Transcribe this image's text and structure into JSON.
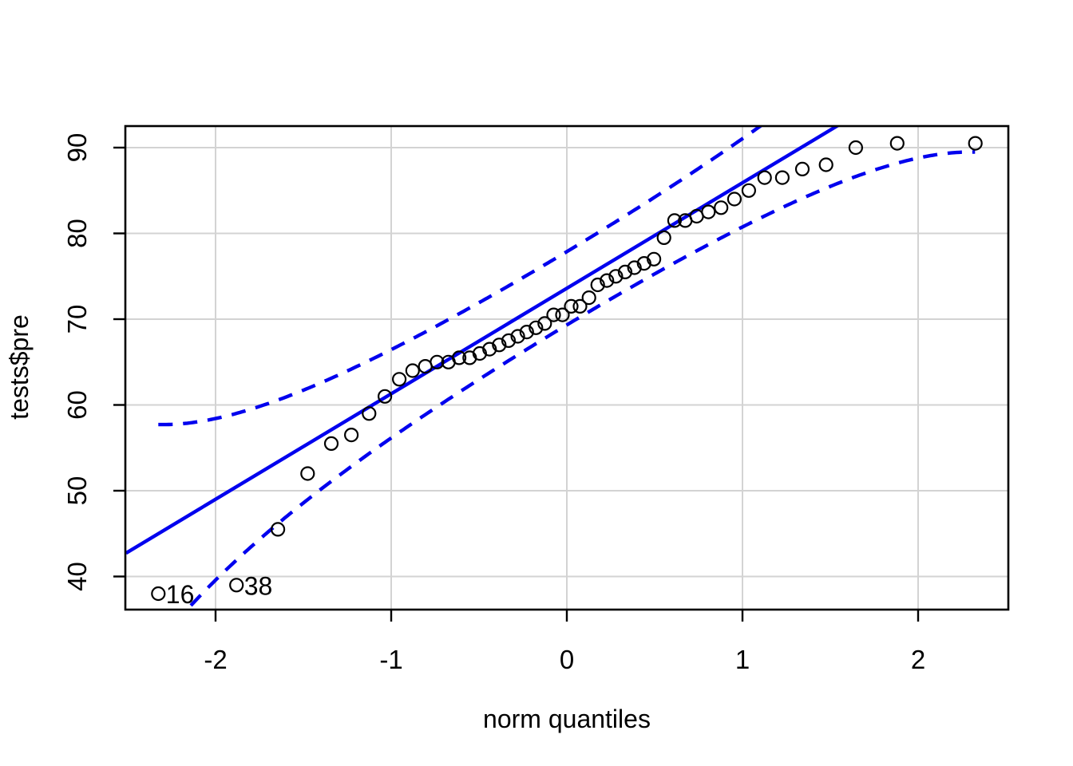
{
  "figure": {
    "background": "#ffffff"
  },
  "chart_data": {
    "type": "scatter",
    "variant": "qq-plot-with-confidence-envelope",
    "title": "",
    "xlabel": "norm quantiles",
    "ylabel": "tests$pre",
    "x_ticks": [
      -2,
      -1,
      0,
      1,
      2
    ],
    "y_ticks": [
      40,
      50,
      60,
      70,
      80,
      90
    ],
    "xlim": [
      -2.51,
      2.51
    ],
    "ylim": [
      36.1,
      92.5
    ],
    "grid": true,
    "legend": false,
    "points": [
      {
        "x": -2.326,
        "y": 38,
        "label": "16"
      },
      {
        "x": -1.881,
        "y": 39,
        "label": "38"
      },
      {
        "x": -1.645,
        "y": 45.5
      },
      {
        "x": -1.476,
        "y": 52
      },
      {
        "x": -1.341,
        "y": 55.5
      },
      {
        "x": -1.227,
        "y": 56.5
      },
      {
        "x": -1.126,
        "y": 59
      },
      {
        "x": -1.036,
        "y": 61
      },
      {
        "x": -0.954,
        "y": 63
      },
      {
        "x": -0.878,
        "y": 64
      },
      {
        "x": -0.806,
        "y": 64.5
      },
      {
        "x": -0.739,
        "y": 65
      },
      {
        "x": -0.674,
        "y": 65
      },
      {
        "x": -0.613,
        "y": 65.5
      },
      {
        "x": -0.553,
        "y": 65.5
      },
      {
        "x": -0.496,
        "y": 66
      },
      {
        "x": -0.44,
        "y": 66.5
      },
      {
        "x": -0.385,
        "y": 67
      },
      {
        "x": -0.332,
        "y": 67.5
      },
      {
        "x": -0.279,
        "y": 68
      },
      {
        "x": -0.228,
        "y": 68.5
      },
      {
        "x": -0.176,
        "y": 69
      },
      {
        "x": -0.126,
        "y": 69.5
      },
      {
        "x": -0.075,
        "y": 70.5
      },
      {
        "x": -0.025,
        "y": 70.5
      },
      {
        "x": 0.025,
        "y": 71.5
      },
      {
        "x": 0.075,
        "y": 71.5
      },
      {
        "x": 0.126,
        "y": 72.5
      },
      {
        "x": 0.176,
        "y": 74
      },
      {
        "x": 0.228,
        "y": 74.5
      },
      {
        "x": 0.279,
        "y": 75
      },
      {
        "x": 0.332,
        "y": 75.5
      },
      {
        "x": 0.385,
        "y": 76
      },
      {
        "x": 0.44,
        "y": 76.5
      },
      {
        "x": 0.496,
        "y": 77
      },
      {
        "x": 0.553,
        "y": 79.5
      },
      {
        "x": 0.613,
        "y": 81.5
      },
      {
        "x": 0.674,
        "y": 81.5
      },
      {
        "x": 0.739,
        "y": 82
      },
      {
        "x": 0.806,
        "y": 82.5
      },
      {
        "x": 0.878,
        "y": 83
      },
      {
        "x": 0.954,
        "y": 84
      },
      {
        "x": 1.036,
        "y": 85
      },
      {
        "x": 1.126,
        "y": 86.5
      },
      {
        "x": 1.227,
        "y": 86.5
      },
      {
        "x": 1.341,
        "y": 87.5
      },
      {
        "x": 1.476,
        "y": 88
      },
      {
        "x": 1.645,
        "y": 90
      },
      {
        "x": 1.881,
        "y": 90.5
      },
      {
        "x": 2.326,
        "y": 90.5
      }
    ],
    "outlier_labels": [
      "16",
      "38"
    ],
    "reference_line": {
      "intercept": 73.6,
      "slope": 12.3,
      "style": "solid"
    },
    "envelope": {
      "level": 0.95,
      "multiplier": 1.96,
      "n": 50,
      "x_min": -2.326,
      "x_max": 2.326,
      "style": "dashed"
    },
    "colors": {
      "lines": "#0000ee",
      "points": "#000000",
      "grid": "#d3d3d3",
      "axis": "#000000",
      "text": "#000000",
      "background": "#ffffff"
    }
  }
}
